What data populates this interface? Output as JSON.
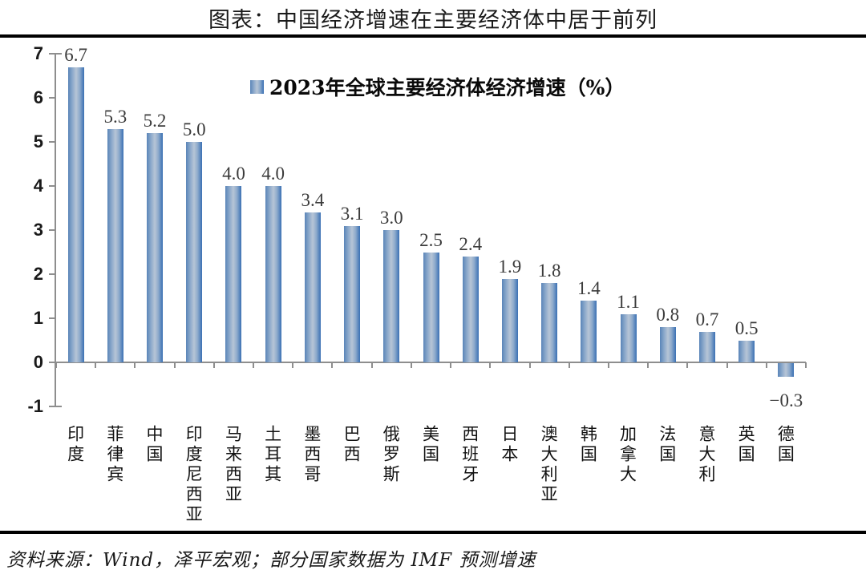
{
  "title": "图表：中国经济增速在主要经济体中居于前列",
  "footer": "资料来源：Wind，泽平宏观；部分国家数据为 IMF 预测增速",
  "colors": {
    "bar_edge_left": "#5a85b8",
    "bar_mid": "#8fabcc",
    "bar_center": "#b7c5d6",
    "bar_edge_right": "#3a70b4",
    "axis": "#8e8e8e",
    "rule": "#000000",
    "data_label": "#3b3b3b"
  },
  "chart_data": {
    "type": "bar",
    "title": "2023年全球主要经济体经济增速（%）",
    "legend_position": "top-center",
    "grid": false,
    "categories": [
      "印度",
      "菲律宾",
      "中国",
      "印度尼西亚",
      "马来西亚",
      "土耳其",
      "墨西哥",
      "巴西",
      "俄罗斯",
      "美国",
      "西班牙",
      "日本",
      "澳大利亚",
      "韩国",
      "加拿大",
      "法国",
      "意大利",
      "英国",
      "德国"
    ],
    "values": [
      6.7,
      5.3,
      5.2,
      5.0,
      4.0,
      4.0,
      3.4,
      3.1,
      3.0,
      2.5,
      2.4,
      1.9,
      1.8,
      1.4,
      1.1,
      0.8,
      0.7,
      0.5,
      -0.3
    ],
    "value_labels": [
      "6.7",
      "5.3",
      "5.2",
      "5.0",
      "4.0",
      "4.0",
      "3.4",
      "3.1",
      "3.0",
      "2.5",
      "2.4",
      "1.9",
      "1.8",
      "1.4",
      "1.1",
      "0.8",
      "0.7",
      "0.5",
      "−0.3"
    ],
    "ylabel": "",
    "xlabel": "",
    "ylim": [
      -1,
      7
    ],
    "yticks": [
      -1,
      0,
      1,
      2,
      3,
      4,
      5,
      6,
      7
    ],
    "bar_gradient": {
      "edge_left": "#5a85b8",
      "mid": "#8fabcc",
      "center": "#b7c5d6",
      "edge_right": "#3a70b4"
    }
  }
}
